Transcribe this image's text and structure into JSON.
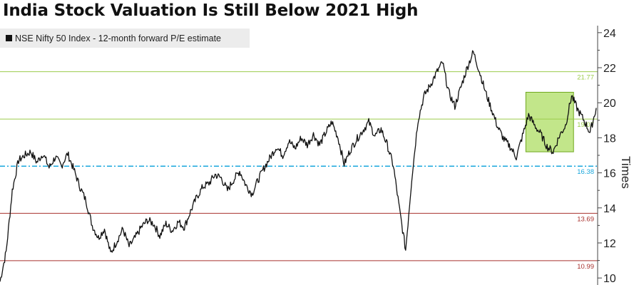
{
  "chart_data": {
    "type": "line",
    "title": "India Stock Valuation Is Still Below 2021 High",
    "ylabel": "Times",
    "ylim": [
      9.6,
      24.4
    ],
    "yticks": [
      10,
      12,
      14,
      16,
      18,
      20,
      22,
      24
    ],
    "grid": false,
    "legend_position": "top-left",
    "series": [
      {
        "name": "NSE Nifty 50 Index - 12-month forward P/E estimate",
        "color": "#111111",
        "values": [
          9.8,
          11.5,
          15.0,
          16.7,
          17.0,
          17.2,
          16.6,
          17.1,
          16.3,
          16.9,
          16.4,
          17.1,
          16.2,
          15.2,
          14.4,
          13.0,
          12.3,
          12.8,
          11.4,
          12.1,
          12.8,
          11.8,
          12.3,
          12.9,
          13.3,
          13.1,
          12.4,
          13.1,
          12.7,
          13.2,
          12.9,
          13.8,
          14.6,
          15.2,
          15.4,
          15.9,
          15.7,
          15.0,
          15.6,
          16.1,
          15.3,
          14.8,
          15.6,
          16.3,
          16.9,
          17.5,
          17.0,
          17.8,
          17.4,
          18.0,
          17.6,
          18.2,
          17.6,
          18.3,
          18.9,
          18.0,
          16.5,
          17.3,
          17.9,
          18.4,
          18.9,
          18.1,
          18.5,
          17.6,
          16.4,
          13.9,
          11.6,
          15.7,
          19.0,
          20.4,
          21.0,
          21.7,
          22.3,
          20.6,
          19.8,
          20.9,
          22.0,
          22.9,
          21.8,
          20.6,
          19.6,
          18.6,
          17.9,
          17.5,
          16.9,
          18.1,
          19.3,
          18.7,
          18.2,
          17.5,
          17.2,
          18.1,
          18.7,
          20.4,
          19.6,
          19.0,
          18.3,
          19.7
        ]
      }
    ],
    "reference_lines": [
      {
        "value": 21.77,
        "label": "21.77",
        "color": "#9ccc4c",
        "style": "solid"
      },
      {
        "value": 19.07,
        "label": "19.07",
        "color": "#9ccc4c",
        "style": "solid"
      },
      {
        "value": 16.38,
        "label": "16.38",
        "color": "#1aa7dc",
        "style": "dashed"
      },
      {
        "value": 13.69,
        "label": "13.69",
        "color": "#a8322e",
        "style": "solid"
      },
      {
        "value": 10.99,
        "label": "10.99",
        "color": "#a8322e",
        "style": "solid"
      }
    ],
    "highlight": {
      "x_range": [
        0.882,
        0.962
      ],
      "y_range": [
        17.2,
        20.6
      ],
      "color": "#8fd12a"
    }
  },
  "colors": {
    "background": "#ffffff",
    "line": "#111111",
    "upper_band": "#9ccc4c",
    "mean": "#1aa7dc",
    "lower_band": "#a8322e",
    "highlight": "#8fd12a"
  }
}
